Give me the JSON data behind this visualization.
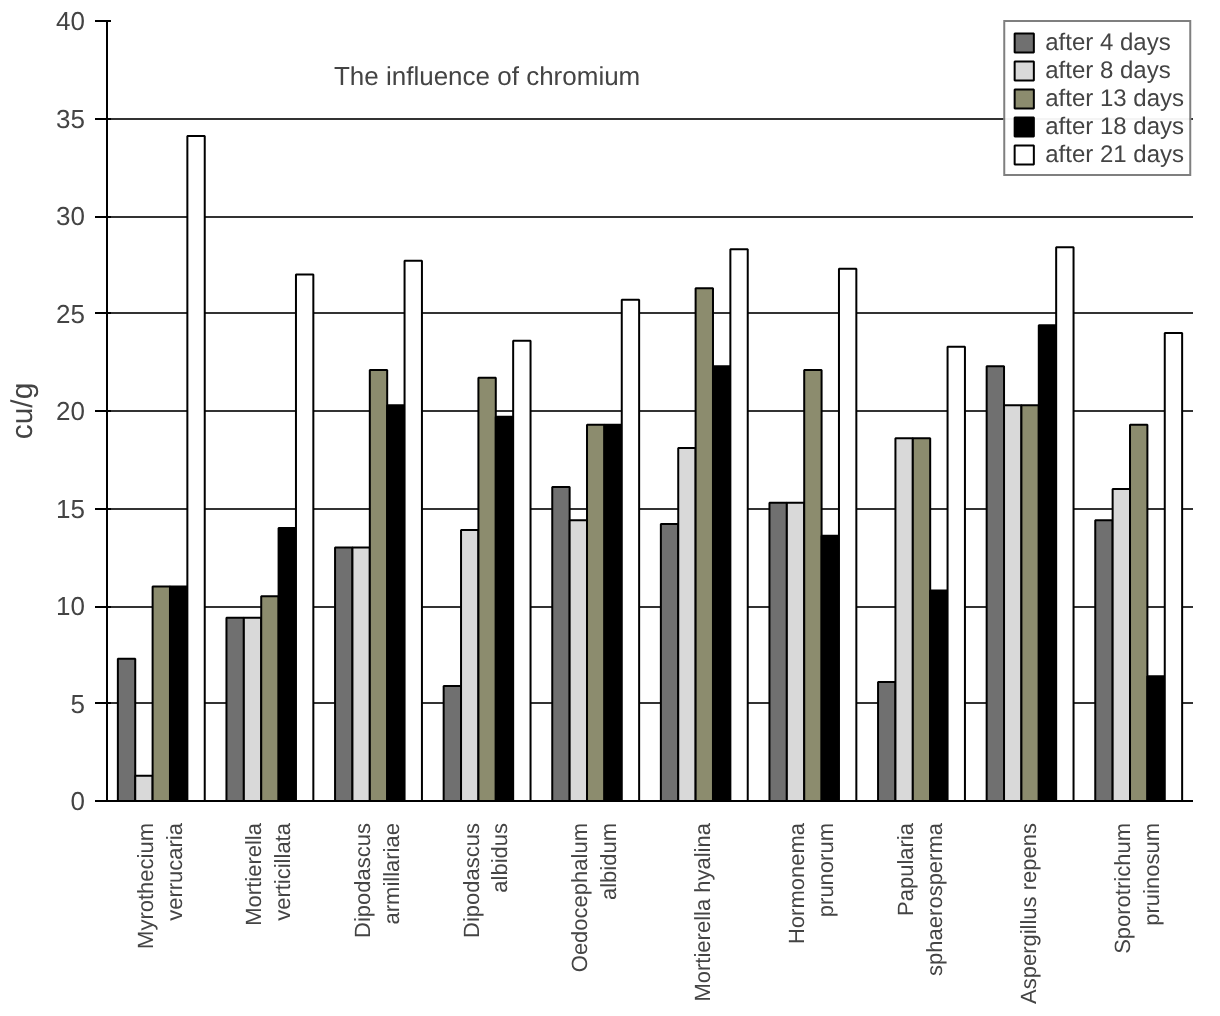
{
  "chart_data": {
    "type": "bar",
    "title": "The influence of chromium",
    "ylabel": "cu/g",
    "categories": [
      "Myrothecium\nverrucaria",
      "Mortierella\nverticillata",
      "Dipodascus\narmillariae",
      "Dipodascus\nalbidus",
      "Oedocephalum\nalbidum",
      "Mortierella hyalina",
      "Hormonema\nprunorum",
      "Papularia\nsphaerosperma",
      "Aspergillus repens",
      "Sporotrichum\npruinosum"
    ],
    "series": [
      {
        "name": "after 4 days",
        "color": "#707070",
        "values": [
          7.3,
          9.4,
          13,
          5.9,
          16.1,
          14.2,
          15.3,
          6.1,
          22.3,
          14.4
        ]
      },
      {
        "name": "after 8 days",
        "color": "#d9d9d9",
        "values": [
          1.3,
          9.4,
          13,
          13.9,
          14.4,
          18.1,
          15.3,
          18.6,
          20.3,
          16
        ]
      },
      {
        "name": "after 13 days",
        "color": "#8c8c6e",
        "values": [
          11,
          10.5,
          22.1,
          21.7,
          19.3,
          26.3,
          22.1,
          18.6,
          20.3,
          19.3
        ]
      },
      {
        "name": "after 18 days",
        "color": "#000000",
        "values": [
          11,
          14,
          20.3,
          19.7,
          19.3,
          22.3,
          13.6,
          10.8,
          24.4,
          6.4
        ]
      },
      {
        "name": "after 21 days",
        "color": "#ffffff",
        "values": [
          34.1,
          27,
          27.7,
          23.6,
          25.7,
          28.3,
          27.3,
          23.3,
          28.4,
          24
        ]
      }
    ],
    "ylim": [
      0,
      40
    ],
    "yticks": [
      0,
      5,
      10,
      15,
      20,
      25,
      30,
      35,
      40
    ],
    "grid": "y",
    "legend": "top right"
  }
}
